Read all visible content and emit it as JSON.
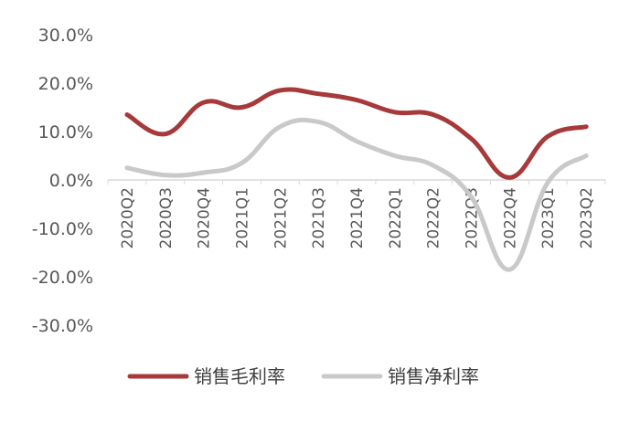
{
  "chart_data": {
    "type": "line",
    "title": "",
    "xlabel": "",
    "ylabel": "",
    "categories": [
      "2020Q2",
      "2020Q3",
      "2020Q4",
      "2021Q1",
      "2021Q2",
      "2021Q3",
      "2021Q4",
      "2022Q1",
      "2022Q2",
      "2022Q3",
      "2022Q4",
      "2023Q1",
      "2023Q2"
    ],
    "ylim": [
      -30,
      30
    ],
    "yticks": [
      30,
      20,
      10,
      0,
      -10,
      -20,
      -30
    ],
    "ytick_labels": [
      "30.0%",
      "20.0%",
      "10.0%",
      "0.0%",
      "-10.0%",
      "-20.0%",
      "-30.0%"
    ],
    "grid": false,
    "legend_position": "bottom",
    "series": [
      {
        "name": "销售毛利率",
        "color": "#a63a3a",
        "values": [
          13.5,
          9.5,
          16.0,
          15.0,
          18.5,
          17.8,
          16.5,
          14.0,
          13.5,
          8.5,
          0.5,
          9.0,
          11.0
        ]
      },
      {
        "name": "销售净利率",
        "color": "#c9c9c9",
        "values": [
          2.5,
          1.0,
          1.5,
          3.5,
          11.0,
          12.0,
          8.0,
          5.0,
          3.0,
          -3.5,
          -18.5,
          -0.5,
          5.0
        ]
      }
    ]
  }
}
